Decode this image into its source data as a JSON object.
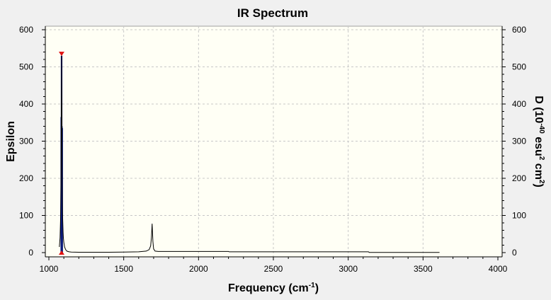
{
  "chart_data": {
    "type": "line",
    "title": "IR Spectrum",
    "xlabel": {
      "prefix": "Frequency (cm",
      "sup": "-1",
      "suffix": ")"
    },
    "ylabel_left": "Epsilon",
    "ylabel_right": {
      "p1": "D (10",
      "s1": "-40",
      "p2": " esu",
      "s2": "2",
      "p3": " cm",
      "s3": "2",
      "p4": ")"
    },
    "xlim": [
      1000,
      4000
    ],
    "ylim": [
      0,
      600
    ],
    "x_ticks": [
      "1000",
      "1500",
      "2000",
      "2500",
      "3000",
      "3500",
      "4000"
    ],
    "y_ticks_left": [
      "0",
      "100",
      "200",
      "300",
      "400",
      "500",
      "600"
    ],
    "y_ticks_right": [
      "0",
      "100",
      "200",
      "300",
      "400",
      "500",
      "600"
    ],
    "grid": true,
    "series": [
      {
        "kind": "spectrum",
        "color": "#000000",
        "x": [
          1070,
          1075,
          1078,
          1081,
          1083,
          1085,
          1087,
          1089,
          1091,
          1093,
          1095,
          1097,
          1100,
          1105,
          1112,
          1120,
          1135,
          1150,
          1200,
          1300,
          1400,
          1500,
          1600,
          1650,
          1670,
          1680,
          1685,
          1688,
          1690,
          1692,
          1695,
          1700,
          1710,
          1730,
          1800,
          2000,
          2200,
          2205,
          2500,
          3000,
          3135,
          3140,
          3300,
          3450,
          3610
        ],
        "y": [
          15,
          40,
          90,
          200,
          365,
          530,
          350,
          180,
          110,
          80,
          55,
          40,
          28,
          15,
          8,
          4,
          2,
          1.5,
          1,
          1,
          1,
          1.5,
          2,
          4,
          8,
          18,
          40,
          62,
          78,
          60,
          30,
          10,
          4,
          3,
          3,
          3,
          3,
          2,
          2,
          2,
          2,
          0.5,
          0.5,
          0.5,
          0.5
        ]
      }
    ],
    "sticks": {
      "color": "#0a1a7a",
      "x": [
        1083,
        1085,
        1087,
        1089
      ],
      "y": [
        365,
        530,
        340,
        335
      ]
    },
    "markers": {
      "color": "#e01010",
      "x": 1085,
      "top_y": 535,
      "bottom_y": 0
    },
    "background_color": "#fffff5",
    "grid_color": "#c8c8c8"
  }
}
